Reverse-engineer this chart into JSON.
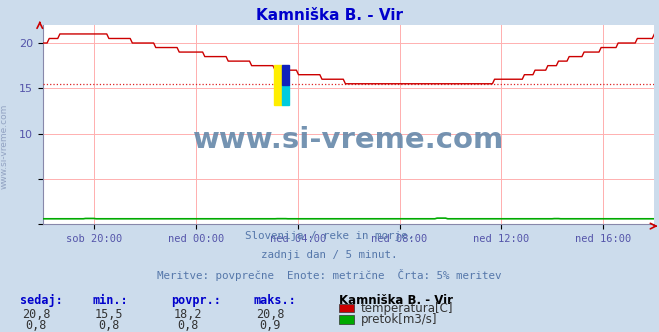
{
  "title": "Kamniška B. - Vir",
  "title_color": "#0000cc",
  "bg_color": "#ccdcec",
  "plot_bg_color": "#ffffff",
  "grid_color": "#ffb0b0",
  "watermark_text": "www.si-vreme.com",
  "watermark_color": "#6688aa",
  "subtitle_lines": [
    "Slovenija / reke in morje.",
    "zadnji dan / 5 minut.",
    "Meritve: povprečne  Enote: metrične  Črta: 5% meritev"
  ],
  "subtitle_color": "#5577aa",
  "table_header": [
    "sedaj:",
    "min.:",
    "povpr.:",
    "maks.:",
    "Kamniška B. - Vir"
  ],
  "table_row1": [
    "20,8",
    "15,5",
    "18,2",
    "20,8"
  ],
  "table_row2": [
    "0,8",
    "0,8",
    "0,8",
    "0,9"
  ],
  "legend_labels": [
    "temperatura[C]",
    "pretok[m3/s]"
  ],
  "legend_colors": [
    "#cc0000",
    "#00aa00"
  ],
  "x_tick_labels": [
    "sob 20:00",
    "ned 00:00",
    "ned 04:00",
    "ned 08:00",
    "ned 12:00",
    "ned 16:00"
  ],
  "y_ticks": [
    10,
    15,
    20
  ],
  "ylim_temp": [
    0,
    22
  ],
  "ylim_flow": [
    0,
    2.0
  ],
  "avg_line_value": 15.5,
  "avg_line_color": "#dd2222",
  "temp_line_color": "#cc0000",
  "flow_line_color": "#00aa00",
  "axis_color": "#5555aa",
  "border_color": "#8888aa",
  "left_label": "www.si-vreme.com",
  "left_label_color": "#8899bb"
}
